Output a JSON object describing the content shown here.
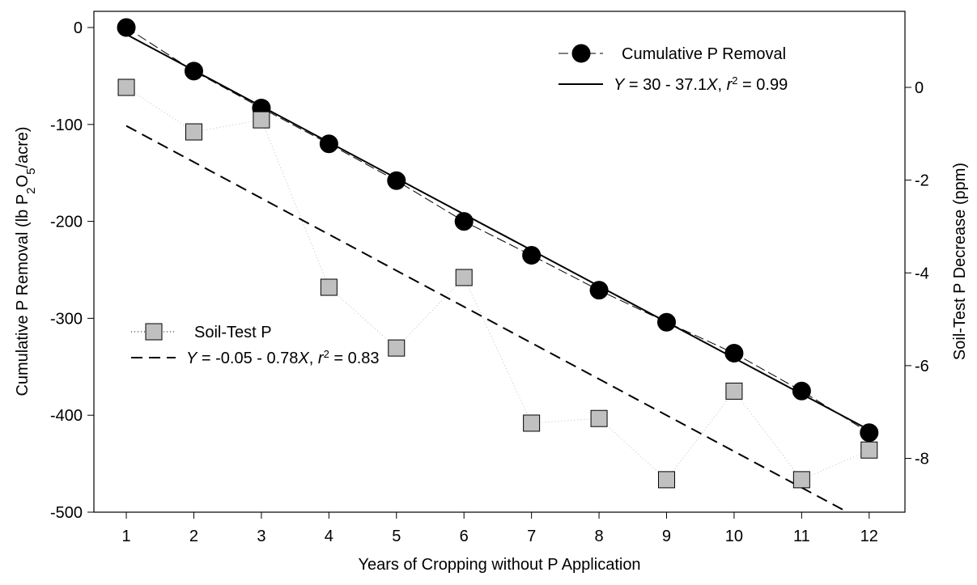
{
  "chart_data": {
    "type": "line",
    "xlabel": "Years of Cropping without P Application",
    "ylabel": [
      "Cumulative P Removal (lb P",
      "2",
      "O",
      "5",
      "/acre)"
    ],
    "y2label": "Soil-Test P Decrease (ppm)",
    "x": [
      1,
      2,
      3,
      4,
      5,
      6,
      7,
      8,
      9,
      10,
      11,
      12
    ],
    "xlim": [
      0.52,
      12.53
    ],
    "xticks": [
      1,
      2,
      3,
      4,
      5,
      6,
      7,
      8,
      9,
      10,
      11,
      12
    ],
    "ylim": [
      -500,
      16.7
    ],
    "yticks": [
      -500,
      -400,
      -300,
      -200,
      -100,
      0
    ],
    "y2lim": [
      -9.16,
      1.64
    ],
    "y2ticks": [
      -8,
      -6,
      -4,
      -2,
      0
    ],
    "series": [
      {
        "name": "Cumulative P Removal",
        "marker": "circle",
        "color": "#000000",
        "dash": "12,5",
        "values": [
          0,
          -45,
          -83,
          -120,
          -158,
          -200,
          -235,
          -271,
          -304,
          -336,
          -375,
          -418
        ]
      },
      {
        "name": [
          "Y",
          " = 30 - 37.1",
          "X",
          ", ",
          "r",
          "2",
          " = 0.99"
        ],
        "color": "#000000",
        "x": [
          1,
          12
        ],
        "values": [
          -7.1,
          -415.2
        ]
      },
      {
        "name": "Soil-Test P",
        "marker": "square",
        "color": "#c0c0c0",
        "dash": "1,3",
        "axis": "y2",
        "values": [
          0,
          -0.96,
          -0.7,
          -4.31,
          -5.62,
          -4.1,
          -7.24,
          -7.14,
          -8.46,
          -6.55,
          -8.46,
          -7.82
        ]
      },
      {
        "name": [
          "Y",
          " = -0.05 - 0.78",
          "X",
          ", ",
          "r",
          "2",
          " = 0.83"
        ],
        "color": "#000000",
        "dash": "14,8",
        "axis": "y2",
        "x": [
          1,
          12
        ],
        "values": [
          -0.83,
          -9.41
        ]
      }
    ]
  }
}
